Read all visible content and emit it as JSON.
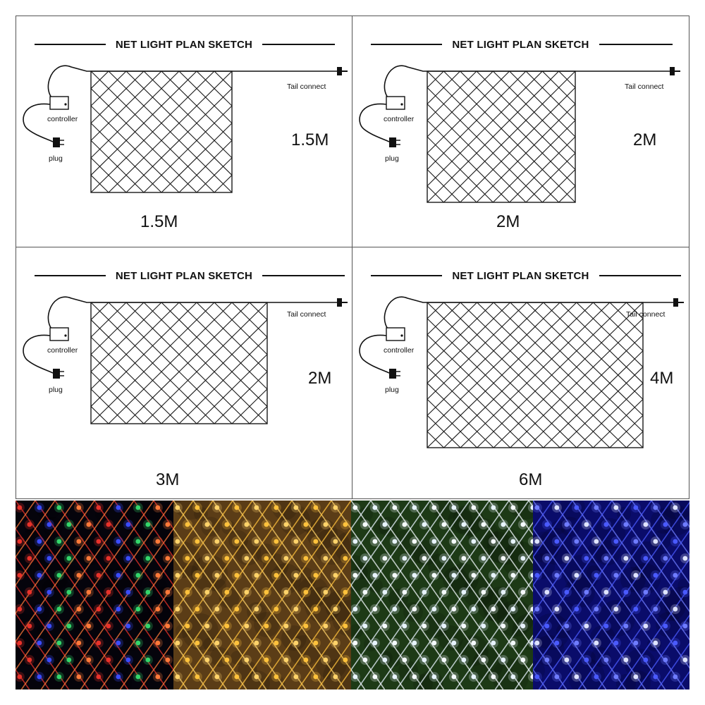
{
  "panels": [
    {
      "title": "NET LIGHT PLAN SKETCH",
      "tail": "Tail connect",
      "controller": "controller",
      "plug": "plug",
      "height": "1.5M",
      "width": "1.5M"
    },
    {
      "title": "NET LIGHT PLAN SKETCH",
      "tail": "Tail connect",
      "controller": "controller",
      "plug": "plug",
      "height": "2M",
      "width": "2M"
    },
    {
      "title": "NET LIGHT PLAN SKETCH",
      "tail": "Tail connect",
      "controller": "controller",
      "plug": "plug",
      "height": "2M",
      "width": "3M"
    },
    {
      "title": "NET LIGHT PLAN SKETCH",
      "tail": "Tail connect",
      "controller": "controller",
      "plug": "plug",
      "height": "4M",
      "width": "6M"
    }
  ],
  "photos": [
    {
      "name": "multicolor-net-photo",
      "colors": [
        "#e8322a",
        "#3a4cff",
        "#34d66b",
        "#ff7a3a"
      ],
      "bg": "#05040c"
    },
    {
      "name": "warm-white-net-photo",
      "colors": [
        "#ffd36a",
        "#ffc23d"
      ],
      "bg": "#5b3d17"
    },
    {
      "name": "cool-white-net-photo",
      "colors": [
        "#f6fbff",
        "#e9f4ff"
      ],
      "bg": "#1d3a16"
    },
    {
      "name": "blue-net-photo",
      "colors": [
        "#6f7dff",
        "#dfe4ff",
        "#4a5aff"
      ],
      "bg": "#0a0c6a"
    }
  ]
}
